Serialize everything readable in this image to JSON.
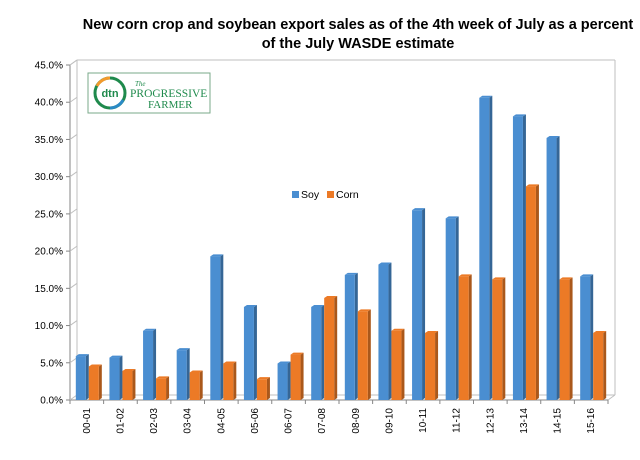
{
  "title_lines": [
    "New corn crop and soybean export sales as of the 4th week of July as a percent",
    "of the July WASDE  estimate"
  ],
  "logo": {
    "mark_text": "dtn",
    "brand_line1": "PROGRESSIVE",
    "brand_line2": "FARMER",
    "brand_prefix": "The",
    "colors": {
      "green": "#1f8a4c",
      "orange": "#f39a2d",
      "blue": "#2b8ac6"
    }
  },
  "colors": {
    "soy": "#4a8ed1",
    "corn": "#ec7a26",
    "axis": "#868686",
    "plot_border": "#bfbfbf"
  },
  "chart_data": {
    "type": "bar",
    "title": "New corn crop and soybean export sales as of the 4th week of July as a percent of the July WASDE  estimate",
    "xlabel": "",
    "ylabel": "",
    "categories": [
      "00-01",
      "01-02",
      "02-03",
      "03-04",
      "04-05",
      "05-06",
      "06-07",
      "07-08",
      "08-09",
      "09-10",
      "10-11",
      "11-12",
      "12-13",
      "13-14",
      "14-15",
      "15-16"
    ],
    "series": [
      {
        "name": "Soy",
        "values": [
          5.9,
          5.7,
          9.3,
          6.7,
          19.3,
          12.5,
          4.9,
          12.5,
          16.8,
          18.2,
          25.5,
          24.4,
          40.6,
          38.1,
          35.2,
          16.6
        ]
      },
      {
        "name": "Corn",
        "values": [
          4.5,
          3.9,
          2.9,
          3.7,
          4.9,
          2.8,
          6.1,
          13.7,
          11.9,
          9.3,
          9.0,
          16.6,
          16.2,
          28.7,
          16.2,
          9.0
        ]
      }
    ],
    "ylim": [
      0,
      45
    ],
    "ytick_step": 5,
    "ytick_labels": [
      "0.0%",
      "5.0%",
      "10.0%",
      "15.0%",
      "20.0%",
      "25.0%",
      "30.0%",
      "35.0%",
      "40.0%",
      "45.0%"
    ],
    "legend": [
      "Soy",
      "Corn"
    ],
    "legend_position": "center",
    "grid": false
  }
}
